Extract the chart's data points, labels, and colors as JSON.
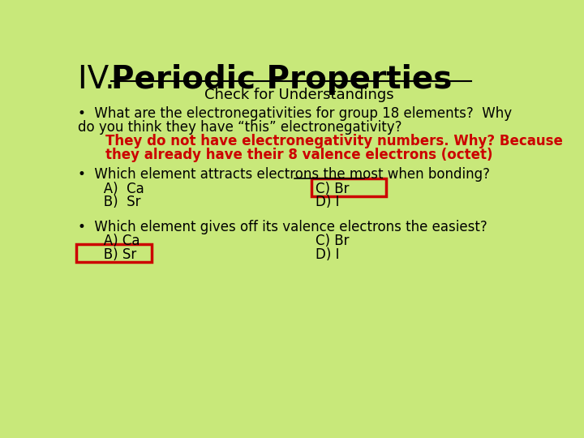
{
  "background_color": "#c8e87a",
  "title_prefix": "IV. ",
  "title_bold": "Periodic Properties",
  "subtitle": "Check for Understandings",
  "title_color": "#000000",
  "subtitle_color": "#000000",
  "red_answer_color": "#cc0000",
  "black_text_color": "#000000",
  "box_color": "#cc0000",
  "bullet1_line1": "•  What are the electronegativities for group 18 elements?  Why",
  "bullet1_line2": "do you think they have “this” electronegativity?",
  "answer1_line1": "    They do not have electronegativity numbers. Why? Because",
  "answer1_line2": "    they already have their 8 valence electrons (octet)",
  "bullet2_line1": "•  Which element attracts electrons the most when bonding?",
  "bullet2_A": "   A)  Ca",
  "bullet2_C": "C) Br",
  "bullet2_B": "   B)  Sr",
  "bullet2_D": "D) I",
  "bullet3_line1": "•  Which element gives off its valence electrons the easiest?",
  "bullet3_A": "   A) Ca",
  "bullet3_C": "C) Br",
  "bullet3_B": "   B) Sr",
  "bullet3_D": "D) I",
  "title_fontsize": 28,
  "subtitle_fontsize": 13,
  "body_fontsize": 12,
  "answer_fontsize": 12
}
